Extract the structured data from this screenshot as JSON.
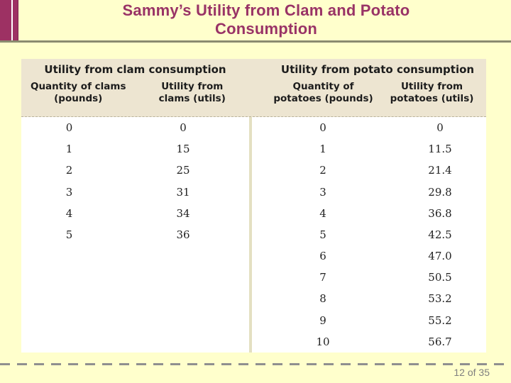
{
  "slide": {
    "title": "Sammy’s Utility from Clam and Potato Consumption",
    "page_indicator": "12 of 35"
  },
  "colors": {
    "slide_background": "#FFFFCC",
    "title_text": "#993366",
    "accent_bar": "#9D3163",
    "title_rule": "#8B8B70",
    "table_header_background": "#EDE5D1",
    "table_body_background": "#FFFFFF",
    "table_divider": "#E4E0C2",
    "footer_text": "#7F7F7F"
  },
  "table": {
    "clams": {
      "group_header": "Utility from clam consumption",
      "columns": [
        "Quantity of clams (pounds)",
        "Utility from clams (utils)"
      ],
      "rows": [
        [
          "0",
          "0"
        ],
        [
          "1",
          "15"
        ],
        [
          "2",
          "25"
        ],
        [
          "3",
          "31"
        ],
        [
          "4",
          "34"
        ],
        [
          "5",
          "36"
        ]
      ]
    },
    "potatoes": {
      "group_header": "Utility from potato consumption",
      "columns": [
        "Quantity of potatoes (pounds)",
        "Utility from potatoes (utils)"
      ],
      "rows": [
        [
          "0",
          "0"
        ],
        [
          "1",
          "11.5"
        ],
        [
          "2",
          "21.4"
        ],
        [
          "3",
          "29.8"
        ],
        [
          "4",
          "36.8"
        ],
        [
          "5",
          "42.5"
        ],
        [
          "6",
          "47.0"
        ],
        [
          "7",
          "50.5"
        ],
        [
          "8",
          "53.2"
        ],
        [
          "9",
          "55.2"
        ],
        [
          "10",
          "56.7"
        ]
      ]
    }
  }
}
